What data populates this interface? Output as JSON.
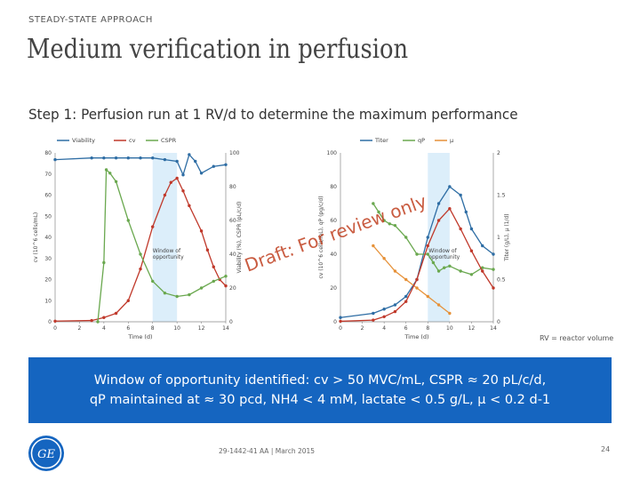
{
  "header": {
    "section": "STEADY-STATE APPROACH",
    "title": "Medium verification in perfusion",
    "step": "Step 1: Perfusion run at 1 RV/d to determine the maximum performance"
  },
  "watermark": "Draft: For review only",
  "rv_note": "RV = reactor volume",
  "banner": {
    "line1": "Window of opportunity identified: cv > 50 MVC/mL, CSPR ≈ 20 pL/c/d,",
    "line2": "qP maintained at ≈ 30 pcd, NH4 < 4 mM, lactate < 0.5 g/L, μ < 0.2 d-1"
  },
  "footer": {
    "doc_id": "29-1442-41 AA | March 2015",
    "page": "24"
  },
  "logo_text": "GE",
  "colors": {
    "blue": "#2e6da4",
    "red": "#c0392b",
    "green": "#6aa84f",
    "orange": "#e69138",
    "window": "#dceefa",
    "banner": "#1565c0"
  },
  "chart_data": [
    {
      "type": "line",
      "legend": [
        "Viability",
        "cv",
        "CSPR"
      ],
      "xlabel": "Time (d)",
      "ylabel_left": "cv (10^6 cells/mL)",
      "ylabel_right": "Viability (%), CSPR (pL/c/d)",
      "xlim": [
        0,
        14
      ],
      "ylim_left": [
        0,
        80
      ],
      "ylim_right": [
        0,
        100
      ],
      "x_ticks": [
        0,
        2,
        4,
        6,
        8,
        10,
        12,
        14
      ],
      "y_left_ticks": [
        0,
        10,
        20,
        30,
        40,
        50,
        60,
        70,
        80
      ],
      "y_right_ticks": [
        0,
        20,
        40,
        60,
        80,
        100
      ],
      "window_label": "Window of opportunity",
      "window_range": [
        8,
        10
      ],
      "series": [
        {
          "name": "Viability",
          "axis": "right",
          "color": "#2e6da4",
          "points": [
            [
              0,
              96
            ],
            [
              3,
              97
            ],
            [
              4,
              97
            ],
            [
              5,
              97
            ],
            [
              6,
              97
            ],
            [
              7,
              97
            ],
            [
              8,
              97
            ],
            [
              9,
              96
            ],
            [
              10,
              95
            ],
            [
              10.5,
              87
            ],
            [
              11,
              99
            ],
            [
              11.5,
              95
            ],
            [
              12,
              88
            ],
            [
              13,
              92
            ],
            [
              14,
              93
            ]
          ]
        },
        {
          "name": "cv",
          "axis": "left",
          "color": "#c0392b",
          "points": [
            [
              0,
              0.3
            ],
            [
              3,
              0.6
            ],
            [
              4,
              2
            ],
            [
              5,
              4
            ],
            [
              6,
              10
            ],
            [
              7,
              25
            ],
            [
              8,
              45
            ],
            [
              9,
              60
            ],
            [
              9.5,
              66
            ],
            [
              10,
              68
            ],
            [
              10.5,
              62
            ],
            [
              11,
              55
            ],
            [
              12,
              43
            ],
            [
              12.5,
              34
            ],
            [
              13,
              26
            ],
            [
              13.5,
              20
            ],
            [
              14,
              17
            ]
          ]
        },
        {
          "name": "CSPR",
          "axis": "right",
          "color": "#6aa84f",
          "points": [
            [
              3.5,
              0
            ],
            [
              4,
              35
            ],
            [
              4.2,
              90
            ],
            [
              4.5,
              88
            ],
            [
              5,
              83
            ],
            [
              6,
              60
            ],
            [
              7,
              40
            ],
            [
              8,
              24
            ],
            [
              9,
              17
            ],
            [
              10,
              15
            ],
            [
              11,
              16
            ],
            [
              12,
              20
            ],
            [
              13,
              24
            ],
            [
              14,
              27
            ]
          ]
        }
      ]
    },
    {
      "type": "line",
      "legend": [
        "Titer",
        "qP",
        "μ"
      ],
      "xlabel": "Time (d)",
      "ylabel_left": "cv (10^6 cells/mL), qP (pg/c/d)",
      "ylabel_right": "Titer (g/L), μ (1/d)",
      "xlim": [
        0,
        14
      ],
      "ylim_left": [
        0,
        100
      ],
      "ylim_right": [
        0,
        2.0
      ],
      "x_ticks": [
        0,
        2,
        4,
        6,
        8,
        10,
        12,
        14
      ],
      "y_left_ticks": [
        0,
        20,
        40,
        60,
        80,
        100
      ],
      "y_right_ticks": [
        0,
        0.5,
        1.0,
        1.5,
        2.0
      ],
      "window_label": "Window of opportunity",
      "window_range": [
        8,
        10
      ],
      "series": [
        {
          "name": "Titer",
          "axis": "right",
          "color": "#2e6da4",
          "points": [
            [
              0,
              0.05
            ],
            [
              3,
              0.1
            ],
            [
              4,
              0.15
            ],
            [
              5,
              0.2
            ],
            [
              6,
              0.3
            ],
            [
              7,
              0.5
            ],
            [
              8,
              1.0
            ],
            [
              9,
              1.4
            ],
            [
              10,
              1.6
            ],
            [
              11,
              1.5
            ],
            [
              11.5,
              1.3
            ],
            [
              12,
              1.1
            ],
            [
              13,
              0.9
            ],
            [
              14,
              0.8
            ]
          ]
        },
        {
          "name": "qP",
          "axis": "left",
          "color": "#6aa84f",
          "points": [
            [
              3,
              70
            ],
            [
              3.5,
              65
            ],
            [
              4,
              60
            ],
            [
              4.5,
              58
            ],
            [
              5,
              57
            ],
            [
              6,
              50
            ],
            [
              7,
              40
            ],
            [
              8,
              40
            ],
            [
              8.5,
              35
            ],
            [
              9,
              30
            ],
            [
              9.5,
              32
            ],
            [
              10,
              33
            ],
            [
              11,
              30
            ],
            [
              12,
              28
            ],
            [
              13,
              32
            ],
            [
              14,
              31
            ]
          ]
        },
        {
          "name": "μ",
          "axis": "right",
          "color": "#e69138",
          "points": [
            [
              3,
              0.9
            ],
            [
              4,
              0.75
            ],
            [
              5,
              0.6
            ],
            [
              6,
              0.5
            ],
            [
              7,
              0.4
            ],
            [
              8,
              0.3
            ],
            [
              9,
              0.2
            ],
            [
              10,
              0.1
            ]
          ]
        },
        {
          "name": "cv",
          "axis": "left",
          "color": "#c0392b",
          "points": [
            [
              0,
              0.3
            ],
            [
              3,
              1
            ],
            [
              4,
              3
            ],
            [
              5,
              6
            ],
            [
              6,
              12
            ],
            [
              7,
              25
            ],
            [
              8,
              45
            ],
            [
              9,
              60
            ],
            [
              10,
              67
            ],
            [
              11,
              55
            ],
            [
              12,
              42
            ],
            [
              13,
              30
            ],
            [
              14,
              20
            ]
          ]
        }
      ]
    }
  ]
}
